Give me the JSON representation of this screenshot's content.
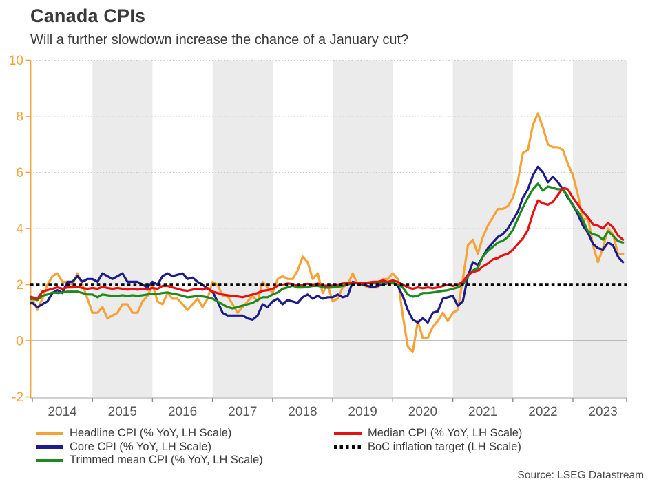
{
  "header": {
    "title": "Canada CPIs",
    "subtitle": "Will a further slowdown increase the chance of a January cut?"
  },
  "source": "Source: LSEG Datastream",
  "chart_data": {
    "type": "line",
    "title": "Canada CPIs",
    "subtitle": "Will a further slowdown increase the chance of a January cut?",
    "x_unit": "month",
    "x_start": "2013-12",
    "x_end": "2023-11",
    "start_offset_months": -1,
    "x_tick_years": [
      2014,
      2015,
      2016,
      2017,
      2018,
      2019,
      2020,
      2021,
      2022,
      2023
    ],
    "shaded_years": [
      2015,
      2017,
      2019,
      2021,
      2023
    ],
    "ylim": [
      -2,
      10
    ],
    "y_ticks": [
      10,
      8,
      6,
      4,
      2,
      0,
      -2
    ],
    "grid": "horizontal-dotted",
    "legend_position": "bottom",
    "colors": {
      "axis_orange": "#f7a237",
      "band_gray": "#ebebeb",
      "grid_gray": "#c9c9c9",
      "zero_line": "#9b9b9b",
      "tick_gray": "#8c8c8c",
      "x_label_gray": "#595959"
    },
    "target": {
      "name": "BoC inflation target (LH Scale)",
      "color": "#000000",
      "style": "dotted",
      "value": 2
    },
    "series": [
      {
        "name": "Headline CPI (% YoY, LH Scale)",
        "color": "#f7a237",
        "values": [
          1.2,
          1.5,
          1.1,
          1.5,
          2.0,
          2.3,
          2.4,
          2.1,
          2.1,
          2.0,
          2.4,
          2.0,
          1.5,
          1.0,
          1.0,
          1.2,
          0.8,
          0.9,
          1.0,
          1.3,
          1.3,
          1.0,
          1.0,
          1.4,
          1.6,
          2.0,
          1.4,
          1.3,
          1.7,
          1.5,
          1.5,
          1.3,
          1.1,
          1.3,
          1.5,
          1.2,
          1.5,
          2.1,
          2.0,
          1.6,
          1.6,
          1.3,
          1.0,
          1.2,
          1.4,
          1.6,
          1.4,
          2.1,
          1.9,
          1.7,
          2.2,
          2.3,
          2.2,
          2.2,
          2.5,
          3.0,
          2.8,
          2.2,
          2.4,
          1.7,
          2.0,
          1.4,
          1.5,
          1.9,
          2.0,
          2.4,
          2.0,
          2.0,
          1.9,
          1.9,
          1.9,
          2.2,
          2.2,
          2.4,
          2.2,
          0.9,
          -0.2,
          -0.4,
          0.7,
          0.1,
          0.1,
          0.5,
          0.7,
          1.0,
          0.7,
          1.0,
          1.1,
          2.2,
          3.4,
          3.6,
          3.1,
          3.7,
          4.1,
          4.4,
          4.7,
          4.7,
          4.8,
          5.1,
          5.7,
          6.7,
          6.8,
          7.7,
          8.1,
          7.6,
          7.0,
          6.9,
          6.9,
          6.8,
          6.3,
          5.9,
          5.2,
          4.3,
          4.4,
          3.4,
          2.8,
          3.3,
          4.0,
          3.8,
          3.1,
          3.1
        ]
      },
      {
        "name": "Core CPI (% YoY, LH Scale)",
        "color": "#1c1c8a",
        "values": [
          1.3,
          1.35,
          1.2,
          1.3,
          1.4,
          1.7,
          1.8,
          1.7,
          2.1,
          2.1,
          2.3,
          2.1,
          2.2,
          2.2,
          2.1,
          2.4,
          2.3,
          2.2,
          2.3,
          2.4,
          2.1,
          2.1,
          2.1,
          2.0,
          1.9,
          2.1,
          2.0,
          2.3,
          2.4,
          2.3,
          2.35,
          2.4,
          2.2,
          2.25,
          2.1,
          2.0,
          1.85,
          1.75,
          1.4,
          1.0,
          0.9,
          0.9,
          0.9,
          0.9,
          0.8,
          0.75,
          0.9,
          1.3,
          1.2,
          1.4,
          1.5,
          1.3,
          1.45,
          1.4,
          1.35,
          1.55,
          1.65,
          1.5,
          1.6,
          1.5,
          1.55,
          1.55,
          1.65,
          1.55,
          1.6,
          2.1,
          2.05,
          2.0,
          1.95,
          1.9,
          1.95,
          2.0,
          2.05,
          2.1,
          1.95,
          1.6,
          1.1,
          0.75,
          0.65,
          0.8,
          0.65,
          1.0,
          1.05,
          1.5,
          1.55,
          1.6,
          1.25,
          1.4,
          2.3,
          2.8,
          2.7,
          3.0,
          3.3,
          3.5,
          3.7,
          3.8,
          4.0,
          4.3,
          4.6,
          5.1,
          5.4,
          5.9,
          6.2,
          6.0,
          5.65,
          5.85,
          5.65,
          5.4,
          5.1,
          4.85,
          4.5,
          4.1,
          3.85,
          3.45,
          3.3,
          3.25,
          3.5,
          3.4,
          3.0,
          2.8
        ]
      },
      {
        "name": "Trimmed mean CPI (% YoY, LH Scale)",
        "color": "#1e8a1e",
        "values": [
          1.45,
          1.5,
          1.45,
          1.6,
          1.65,
          1.72,
          1.7,
          1.72,
          1.75,
          1.75,
          1.75,
          1.7,
          1.65,
          1.65,
          1.55,
          1.65,
          1.62,
          1.6,
          1.6,
          1.62,
          1.6,
          1.62,
          1.6,
          1.62,
          1.65,
          1.67,
          1.67,
          1.7,
          1.72,
          1.68,
          1.65,
          1.6,
          1.55,
          1.57,
          1.6,
          1.58,
          1.55,
          1.5,
          1.4,
          1.3,
          1.2,
          1.15,
          1.2,
          1.25,
          1.3,
          1.35,
          1.45,
          1.55,
          1.55,
          1.65,
          1.72,
          1.85,
          1.9,
          1.96,
          1.9,
          1.9,
          1.92,
          1.95,
          1.96,
          1.9,
          1.89,
          1.9,
          1.92,
          1.95,
          2.0,
          2.05,
          2.05,
          2.05,
          2.05,
          2.05,
          2.05,
          2.1,
          2.05,
          2.05,
          2.0,
          1.9,
          1.65,
          1.57,
          1.6,
          1.7,
          1.7,
          1.72,
          1.75,
          1.78,
          1.8,
          1.85,
          1.9,
          2.0,
          2.3,
          2.5,
          2.6,
          3.0,
          3.2,
          3.35,
          3.5,
          3.56,
          3.7,
          3.95,
          4.35,
          4.75,
          5.1,
          5.4,
          5.6,
          5.35,
          5.5,
          5.45,
          5.4,
          5.4,
          5.15,
          4.8,
          4.6,
          4.3,
          3.9,
          3.8,
          3.75,
          3.6,
          3.9,
          3.75,
          3.55,
          3.5
        ]
      },
      {
        "name": "Median CPI (% YoY, LH Scale)",
        "color": "#e81010",
        "values": [
          1.6,
          1.55,
          1.5,
          1.75,
          1.8,
          1.85,
          1.9,
          1.85,
          1.9,
          1.9,
          1.92,
          1.88,
          1.85,
          1.88,
          1.85,
          1.92,
          1.88,
          1.85,
          1.88,
          1.85,
          1.82,
          1.85,
          1.82,
          1.85,
          1.82,
          1.88,
          1.85,
          1.95,
          1.95,
          1.9,
          1.85,
          1.8,
          1.78,
          1.82,
          1.85,
          1.82,
          1.88,
          1.75,
          1.7,
          1.65,
          1.62,
          1.6,
          1.58,
          1.55,
          1.6,
          1.65,
          1.7,
          1.78,
          1.8,
          1.85,
          1.96,
          2.0,
          2.04,
          2.02,
          1.98,
          2.0,
          2.03,
          2.0,
          2.04,
          1.97,
          1.95,
          1.97,
          2.0,
          2.04,
          2.05,
          2.07,
          2.05,
          2.05,
          2.07,
          2.1,
          2.1,
          2.15,
          2.1,
          2.15,
          2.1,
          2.0,
          1.9,
          1.85,
          1.9,
          1.87,
          1.9,
          1.87,
          1.9,
          1.95,
          2.0,
          1.95,
          2.0,
          2.1,
          2.35,
          2.45,
          2.5,
          2.65,
          2.75,
          2.9,
          2.95,
          3.05,
          3.1,
          3.25,
          3.45,
          3.65,
          3.95,
          4.55,
          5.0,
          4.9,
          4.85,
          4.95,
          5.2,
          5.45,
          5.4,
          5.1,
          4.85,
          4.6,
          4.4,
          4.15,
          4.1,
          4.0,
          4.2,
          4.05,
          3.75,
          3.6
        ]
      }
    ]
  },
  "legend": {
    "rows_col1": [
      "Headline CPI (% YoY, LH Scale)",
      "Core CPI (% YoY, LH Scale)",
      "Trimmed mean CPI (% YoY, LH Scale)"
    ],
    "rows_col2": [
      "Median CPI (% YoY, LH Scale)",
      "BoC inflation target (LH Scale)"
    ]
  }
}
